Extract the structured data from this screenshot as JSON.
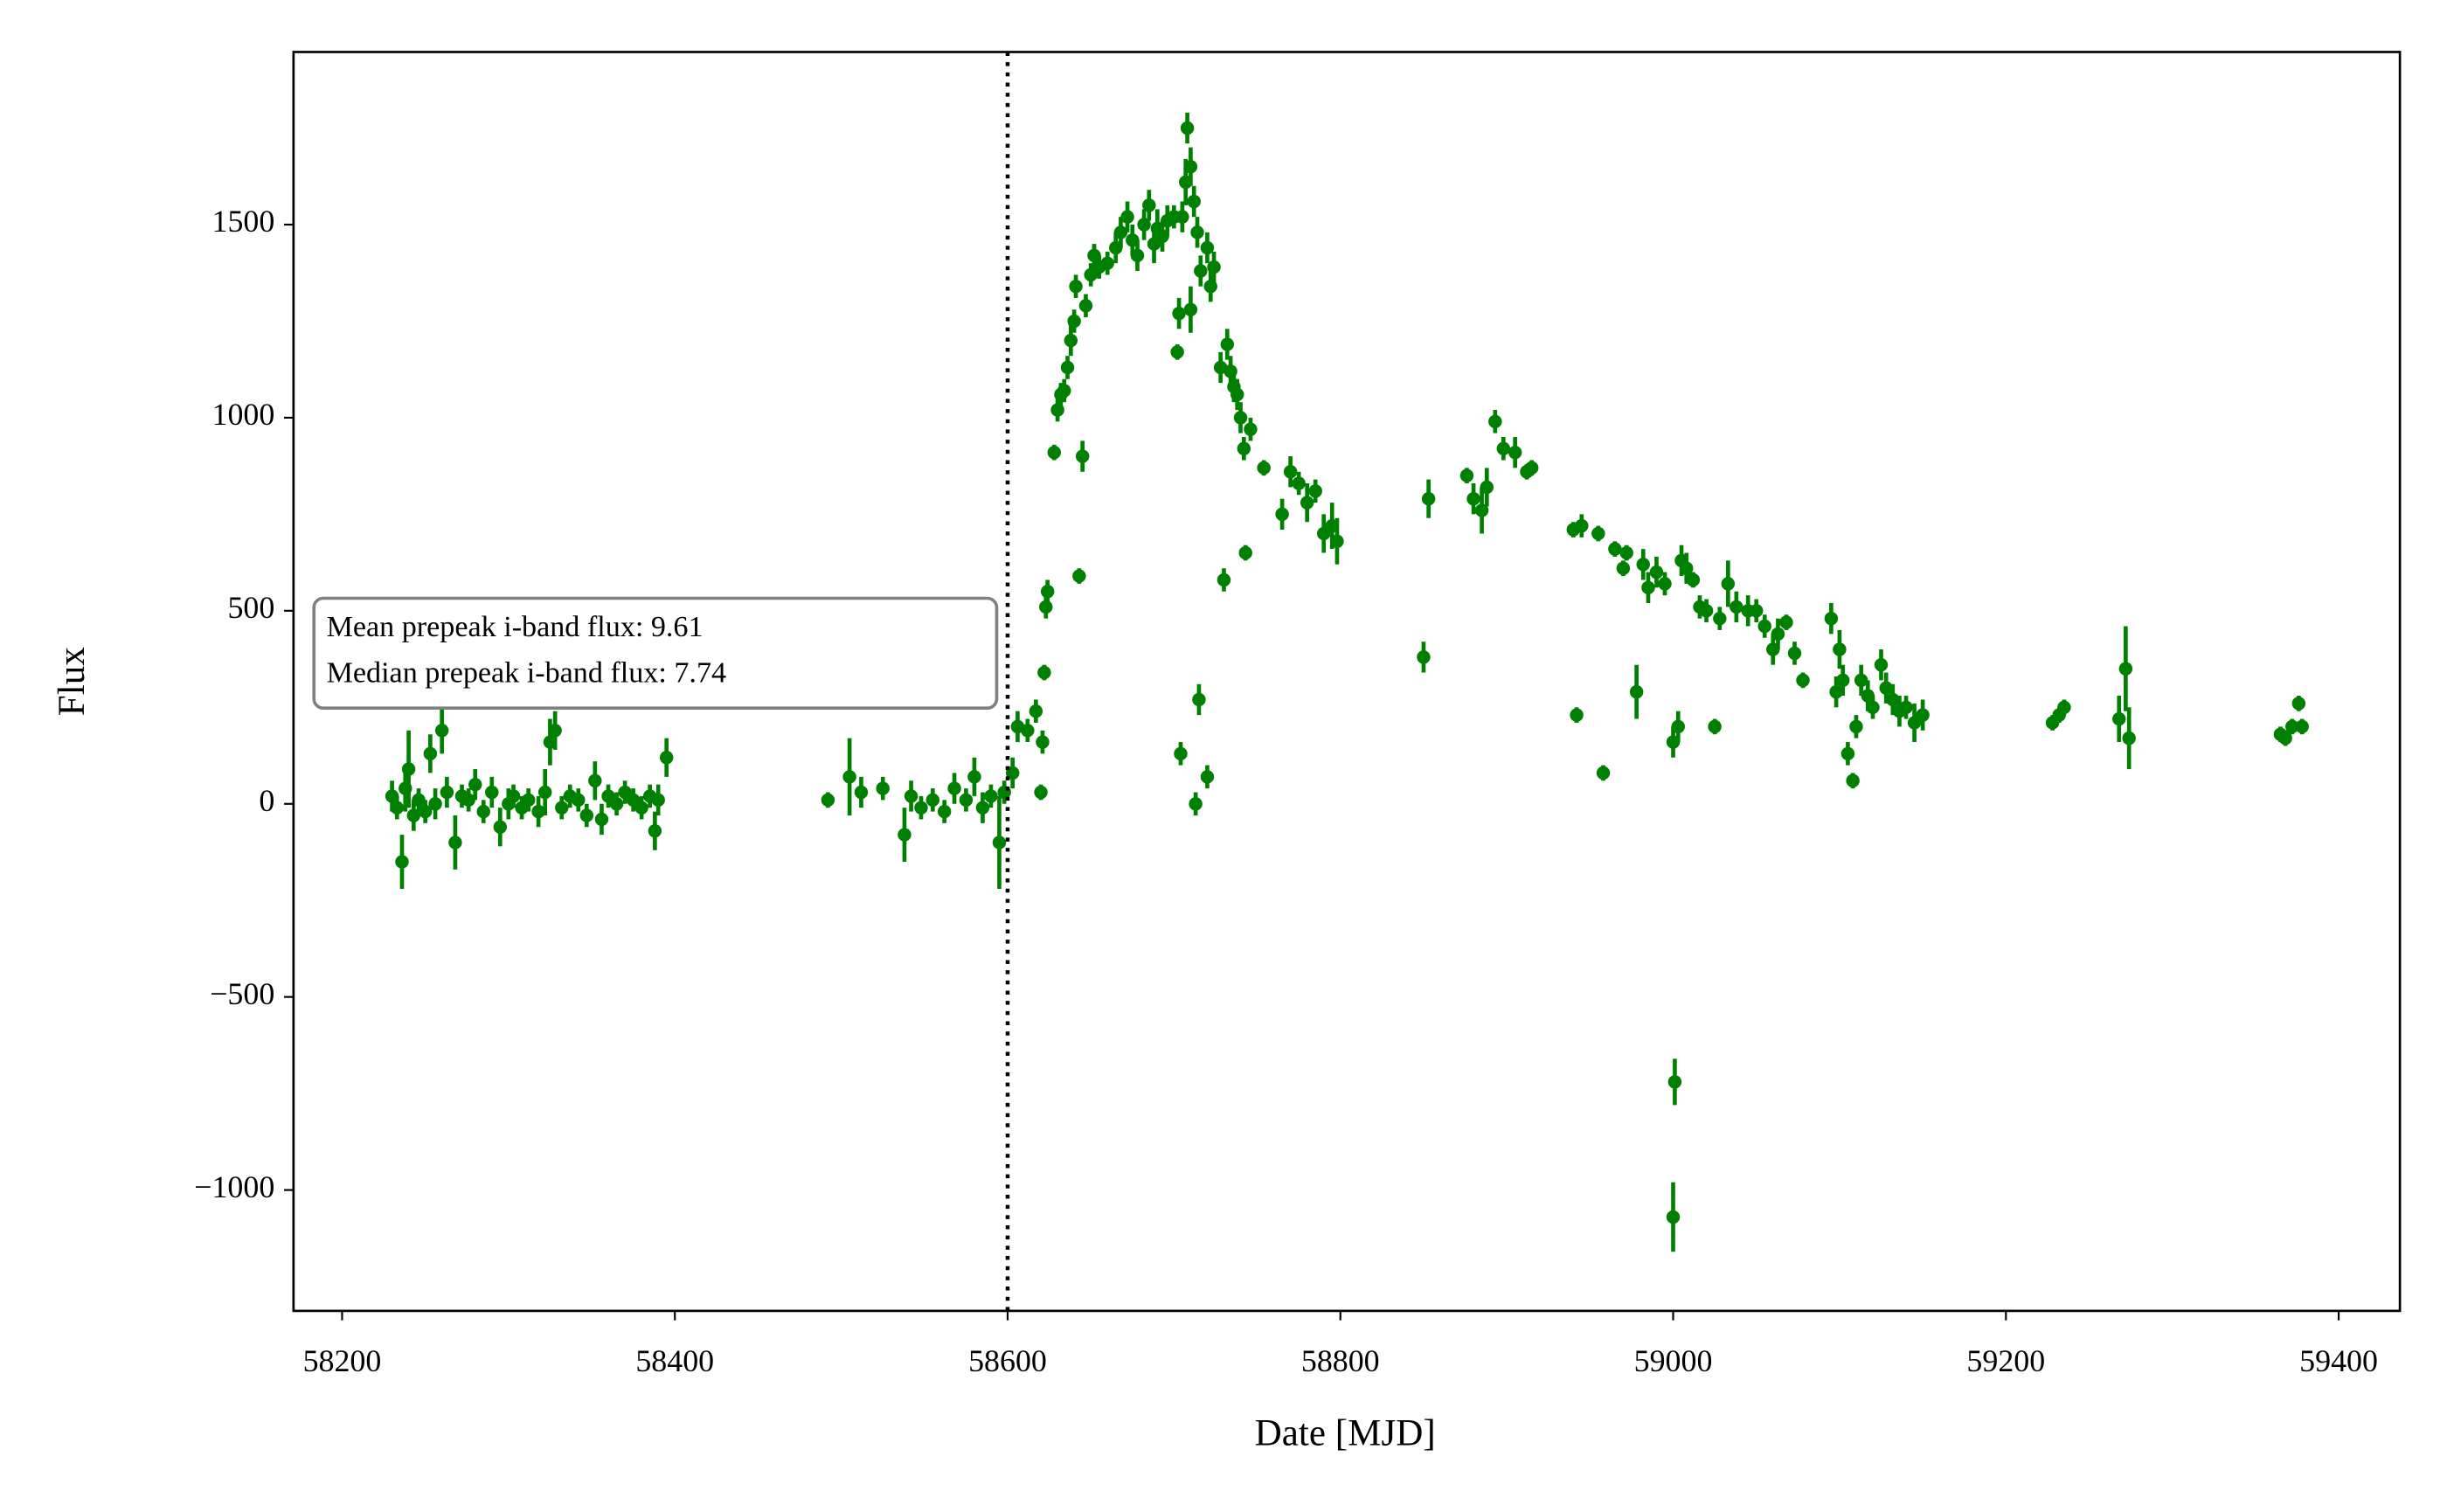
{
  "chart_data": {
    "type": "errorbar",
    "xlabel": "Date [MJD]",
    "ylabel": "Flux",
    "annotation": [
      "Mean prepeak i-band flux: 9.61",
      "Median prepeak i-band flux: 7.74"
    ],
    "vline": 58600,
    "xlim": [
      58170.8,
      59436.8
    ],
    "ylim": [
      -1313,
      1947
    ],
    "xticks": [
      58200,
      58400,
      58600,
      58800,
      59000,
      59200,
      59400
    ],
    "yticks": [
      {
        "value": -1000,
        "label": "−1000"
      },
      {
        "value": -500,
        "label": "−500"
      },
      0,
      500,
      1000,
      1500
    ],
    "x": [
      58230,
      58233,
      58236,
      58238,
      58240,
      58243,
      58246,
      58250,
      58253,
      58256,
      58260,
      58263,
      58268,
      58272,
      58276,
      58280,
      58285,
      58290,
      58295,
      58300,
      58303,
      58308,
      58312,
      58318,
      58322,
      58325,
      58328,
      58332,
      58337,
      58342,
      58347,
      58352,
      58356,
      58360,
      58365,
      58370,
      58375,
      58380,
      58385,
      58388,
      58390,
      58395,
      58492,
      58505,
      58512,
      58525,
      58538,
      58542,
      58548,
      58555,
      58562,
      58568,
      58575,
      58580,
      58585,
      58590,
      58595,
      58598,
      58603,
      58606,
      58612,
      58617,
      58620,
      58621,
      58622,
      58623,
      58624,
      58628,
      58630,
      58632,
      58634,
      58636,
      58638,
      58640,
      58641,
      58643,
      58645,
      58647,
      58650,
      58652,
      58655,
      58660,
      58665,
      58668,
      58672,
      58675,
      58678,
      58682,
      58685,
      58688,
      58690,
      58693,
      58696,
      58700,
      58702,
      58703,
      58705,
      58707,
      58708,
      58710,
      58712,
      58714,
      58716,
      58720,
      58722,
      58724,
      58704,
      58710,
      58713,
      58715,
      58720,
      58728,
      58730,
      58732,
      58734,
      58736,
      58738,
      58740,
      58742,
      58743,
      58746,
      58754,
      58765,
      58770,
      58775,
      58780,
      58785,
      58790,
      58795,
      58798,
      58850,
      58853,
      58876,
      58880,
      58885,
      58888,
      58893,
      58898,
      58905,
      58912,
      58915,
      58940,
      58942,
      58945,
      58955,
      58958,
      58965,
      58970,
      58972,
      58978,
      58982,
      58985,
      58990,
      58995,
      59000,
      59001,
      59000,
      59003,
      59005,
      59008,
      59012,
      59016,
      59020,
      59025,
      59028,
      59033,
      59038,
      59045,
      59050,
      59055,
      59060,
      59063,
      59068,
      59073,
      59078,
      59095,
      59098,
      59100,
      59102,
      59105,
      59108,
      59110,
      59113,
      59117,
      59120,
      59125,
      59128,
      59132,
      59136,
      59140,
      59145,
      59150,
      59228,
      59232,
      59235,
      59268,
      59272,
      59274,
      59365,
      59368,
      59372,
      59376,
      59378
    ],
    "series": [
      {
        "color": "#008000",
        "values": [
          20,
          -10,
          -150,
          40,
          90,
          -30,
          10,
          -20,
          130,
          0,
          190,
          30,
          -100,
          20,
          10,
          50,
          -20,
          30,
          -60,
          0,
          20,
          -10,
          10,
          -20,
          30,
          160,
          190,
          -10,
          20,
          10,
          -30,
          60,
          -40,
          20,
          0,
          30,
          10,
          -10,
          20,
          -70,
          10,
          120,
          10,
          70,
          30,
          40,
          -80,
          20,
          -10,
          10,
          -20,
          40,
          10,
          70,
          -10,
          20,
          -100,
          30,
          80,
          200,
          190,
          240,
          30,
          160,
          340,
          510,
          550,
          910,
          1020,
          1060,
          1070,
          1130,
          1200,
          1250,
          1340,
          590,
          900,
          1290,
          1370,
          1420,
          1390,
          1400,
          1440,
          1480,
          1520,
          1460,
          1420,
          1500,
          1550,
          1450,
          1490,
          1470,
          1510,
          1520,
          1170,
          1270,
          1520,
          1610,
          1750,
          1650,
          1560,
          1480,
          1380,
          1440,
          1340,
          1390,
          130,
          1280,
          0,
          270,
          70,
          1130,
          580,
          1190,
          1120,
          1080,
          1060,
          1000,
          920,
          650,
          970,
          870,
          750,
          860,
          830,
          780,
          810,
          700,
          720,
          680,
          380,
          790,
          850,
          790,
          760,
          820,
          990,
          920,
          910,
          860,
          870,
          710,
          230,
          720,
          700,
          80,
          660,
          610,
          650,
          290,
          620,
          560,
          600,
          570,
          160,
          -720,
          -1070,
          200,
          630,
          610,
          580,
          510,
          500,
          200,
          480,
          570,
          510,
          500,
          500,
          460,
          400,
          440,
          470,
          390,
          320,
          480,
          290,
          400,
          320,
          130,
          60,
          200,
          320,
          280,
          250,
          360,
          300,
          270,
          240,
          250,
          210,
          230,
          210,
          230,
          250,
          220,
          350,
          170,
          180,
          170,
          200,
          260,
          200
        ],
        "errors": [
          40,
          30,
          70,
          60,
          100,
          40,
          30,
          30,
          50,
          40,
          60,
          40,
          70,
          30,
          30,
          40,
          30,
          40,
          50,
          40,
          30,
          30,
          30,
          40,
          60,
          60,
          50,
          30,
          30,
          30,
          30,
          50,
          40,
          30,
          30,
          30,
          30,
          30,
          30,
          50,
          40,
          50,
          20,
          100,
          40,
          30,
          70,
          40,
          30,
          30,
          30,
          40,
          30,
          50,
          40,
          30,
          120,
          30,
          40,
          40,
          30,
          30,
          20,
          30,
          20,
          30,
          30,
          20,
          30,
          30,
          30,
          30,
          40,
          30,
          30,
          20,
          40,
          30,
          30,
          30,
          30,
          30,
          40,
          40,
          40,
          40,
          40,
          40,
          40,
          50,
          50,
          40,
          40,
          30,
          20,
          40,
          40,
          60,
          40,
          50,
          40,
          40,
          40,
          40,
          40,
          40,
          30,
          60,
          30,
          40,
          30,
          40,
          30,
          40,
          40,
          40,
          40,
          40,
          30,
          20,
          30,
          20,
          40,
          40,
          30,
          50,
          30,
          50,
          60,
          60,
          40,
          50,
          20,
          40,
          60,
          50,
          30,
          30,
          40,
          20,
          20,
          20,
          20,
          30,
          20,
          20,
          20,
          20,
          20,
          70,
          40,
          40,
          40,
          30,
          40,
          60,
          90,
          40,
          40,
          40,
          20,
          30,
          30,
          20,
          30,
          60,
          40,
          40,
          30,
          30,
          40,
          40,
          20,
          30,
          20,
          40,
          40,
          50,
          40,
          30,
          20,
          30,
          40,
          40,
          30,
          40,
          40,
          40,
          40,
          30,
          50,
          40,
          20,
          20,
          20,
          60,
          110,
          80,
          20,
          20,
          20,
          20,
          20
        ]
      }
    ]
  }
}
